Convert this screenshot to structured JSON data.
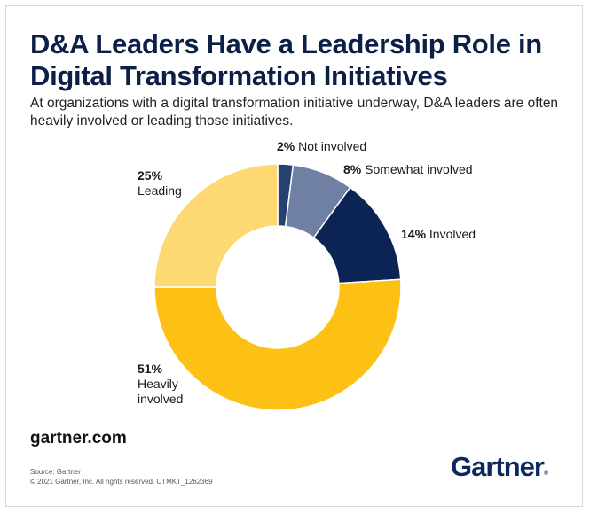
{
  "header": {
    "title": "D&A Leaders Have a Leadership Role in Digital Transformation Initiatives",
    "subtitle": "At organizations with a digital transformation initiative underway, D&A leaders are often heavily involved or leading those initiatives."
  },
  "chart_data": {
    "type": "pie",
    "variant": "donut",
    "slices": [
      {
        "label": "Not involved",
        "value": 2,
        "value_label": "2%",
        "color": "#26416f",
        "label_lines": [
          "Not involved"
        ]
      },
      {
        "label": "Somewhat involved",
        "value": 8,
        "value_label": "8%",
        "color": "#6f80a4",
        "label_lines": [
          "Somewhat involved"
        ]
      },
      {
        "label": "Involved",
        "value": 14,
        "value_label": "14%",
        "color": "#0b2453",
        "label_lines": [
          "Involved"
        ]
      },
      {
        "label": "Heavily involved",
        "value": 51,
        "value_label": "51%",
        "color": "#fdc116",
        "label_lines": [
          "Heavily",
          "involved"
        ]
      },
      {
        "label": "Leading",
        "value": 25,
        "value_label": "25%",
        "color": "#fed872",
        "label_lines": [
          "Leading"
        ]
      }
    ]
  },
  "footer": {
    "domain": "gartner.com",
    "source": "Source: Gartner",
    "copyright": "© 2021 Gartner, Inc. All rights reserved. CTMKT_1262369",
    "logo": "Gartner",
    "logo_mark": "®"
  }
}
